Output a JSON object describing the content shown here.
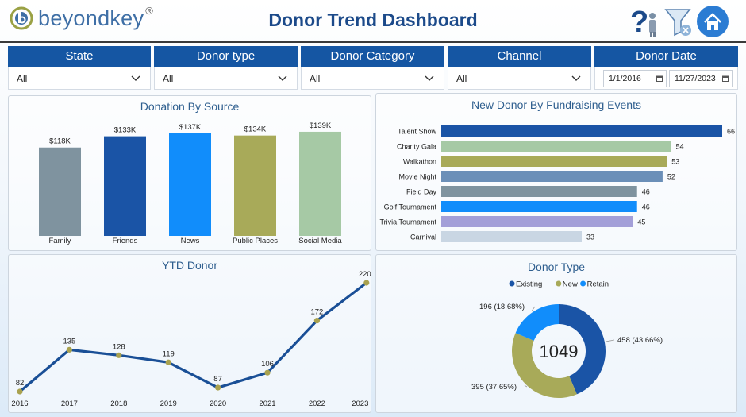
{
  "header": {
    "logo_text": "beyondkey",
    "logo_mark": "®",
    "title": "Donor Trend Dashboard",
    "icons": [
      "help-icon",
      "filter-clear-icon",
      "home-icon"
    ]
  },
  "filters": {
    "state": {
      "label": "State",
      "value": "All"
    },
    "donor_type": {
      "label": "Donor type",
      "value": "All"
    },
    "donor_category": {
      "label": "Donor Category",
      "value": "All"
    },
    "channel": {
      "label": "Channel",
      "value": "All"
    },
    "donor_date": {
      "label": "Donor Date",
      "start": "1/1/2016",
      "end": "11/27/2023"
    }
  },
  "colors": {
    "brand_blue": "#1556a3",
    "title_blue": "#1c4a8a",
    "line": "#1a4f96",
    "marker": "#a9a24f"
  },
  "chart_data": [
    {
      "type": "bar",
      "title": "Donation By Source",
      "categories": [
        "Family",
        "Friends",
        "News",
        "Public Places",
        "Social Media"
      ],
      "values": [
        118,
        133,
        137,
        134,
        139
      ],
      "labels": [
        "$118K",
        "$133K",
        "$137K",
        "$134K",
        "$139K"
      ],
      "colors": [
        "#7f939f",
        "#1a54a6",
        "#118dfb",
        "#a8aa59",
        "#a6c9a5"
      ],
      "ylim": [
        0,
        140
      ]
    },
    {
      "type": "bar",
      "orientation": "horizontal",
      "title": "New Donor By Fundraising Events",
      "categories": [
        "Talent Show",
        "Charity Gala",
        "Walkathon",
        "Movie Night",
        "Field Day",
        "Golf Tournament",
        "Trivia Tournament",
        "Carnival"
      ],
      "values": [
        66,
        54,
        53,
        52,
        46,
        46,
        45,
        33
      ],
      "colors": [
        "#1a54a6",
        "#a6c9a5",
        "#a8aa59",
        "#6b8fb8",
        "#7f939f",
        "#118dfb",
        "#a39fd8",
        "#c9d6e3"
      ],
      "xlim": [
        0,
        66
      ]
    },
    {
      "type": "line",
      "title": "YTD Donor",
      "x": [
        "2016",
        "2017",
        "2018",
        "2019",
        "2020",
        "2021",
        "2022",
        "2023"
      ],
      "values": [
        82,
        135,
        128,
        119,
        87,
        106,
        172,
        220
      ],
      "ylim": [
        82,
        220
      ]
    },
    {
      "type": "pie",
      "title": "Donor Type",
      "center_label": "1049",
      "legend": [
        "Existing",
        "New",
        "Retain"
      ],
      "legend_placement": "top",
      "slices": [
        {
          "name": "Existing",
          "value": 458,
          "label": "458 (43.66%)",
          "color": "#1a54a6"
        },
        {
          "name": "New",
          "value": 395,
          "label": "395 (37.65%)",
          "color": "#a8aa59"
        },
        {
          "name": "Retain",
          "value": 196,
          "label": "196 (18.68%)",
          "color": "#118dfb"
        }
      ]
    }
  ]
}
